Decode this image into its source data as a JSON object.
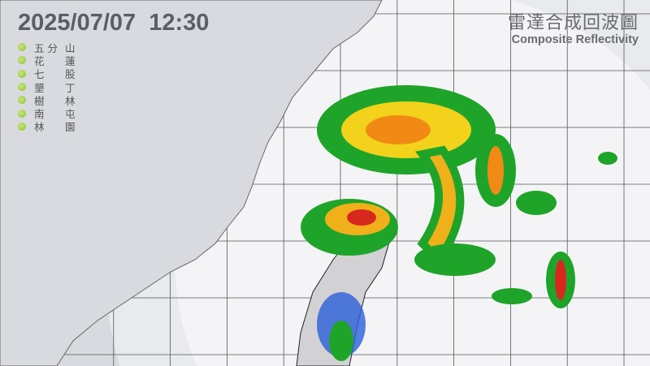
{
  "timestamp": "2025/07/07  12:30",
  "title_zh": "雷達合成回波圖",
  "title_en": "Composite Reflectivity",
  "stations": [
    {
      "a": "五 分",
      "b": "山"
    },
    {
      "a": "花",
      "b": "蓮"
    },
    {
      "a": "七",
      "b": "股"
    },
    {
      "a": "墾",
      "b": "丁"
    },
    {
      "a": "樹",
      "b": "林"
    },
    {
      "a": "南",
      "b": "屯"
    },
    {
      "a": "林",
      "b": "園"
    }
  ],
  "colors": {
    "station_ok": "#8cbf2a",
    "background": "#d9dadf",
    "coverage": "#f2f2f4",
    "text": "#5d5e63"
  }
}
